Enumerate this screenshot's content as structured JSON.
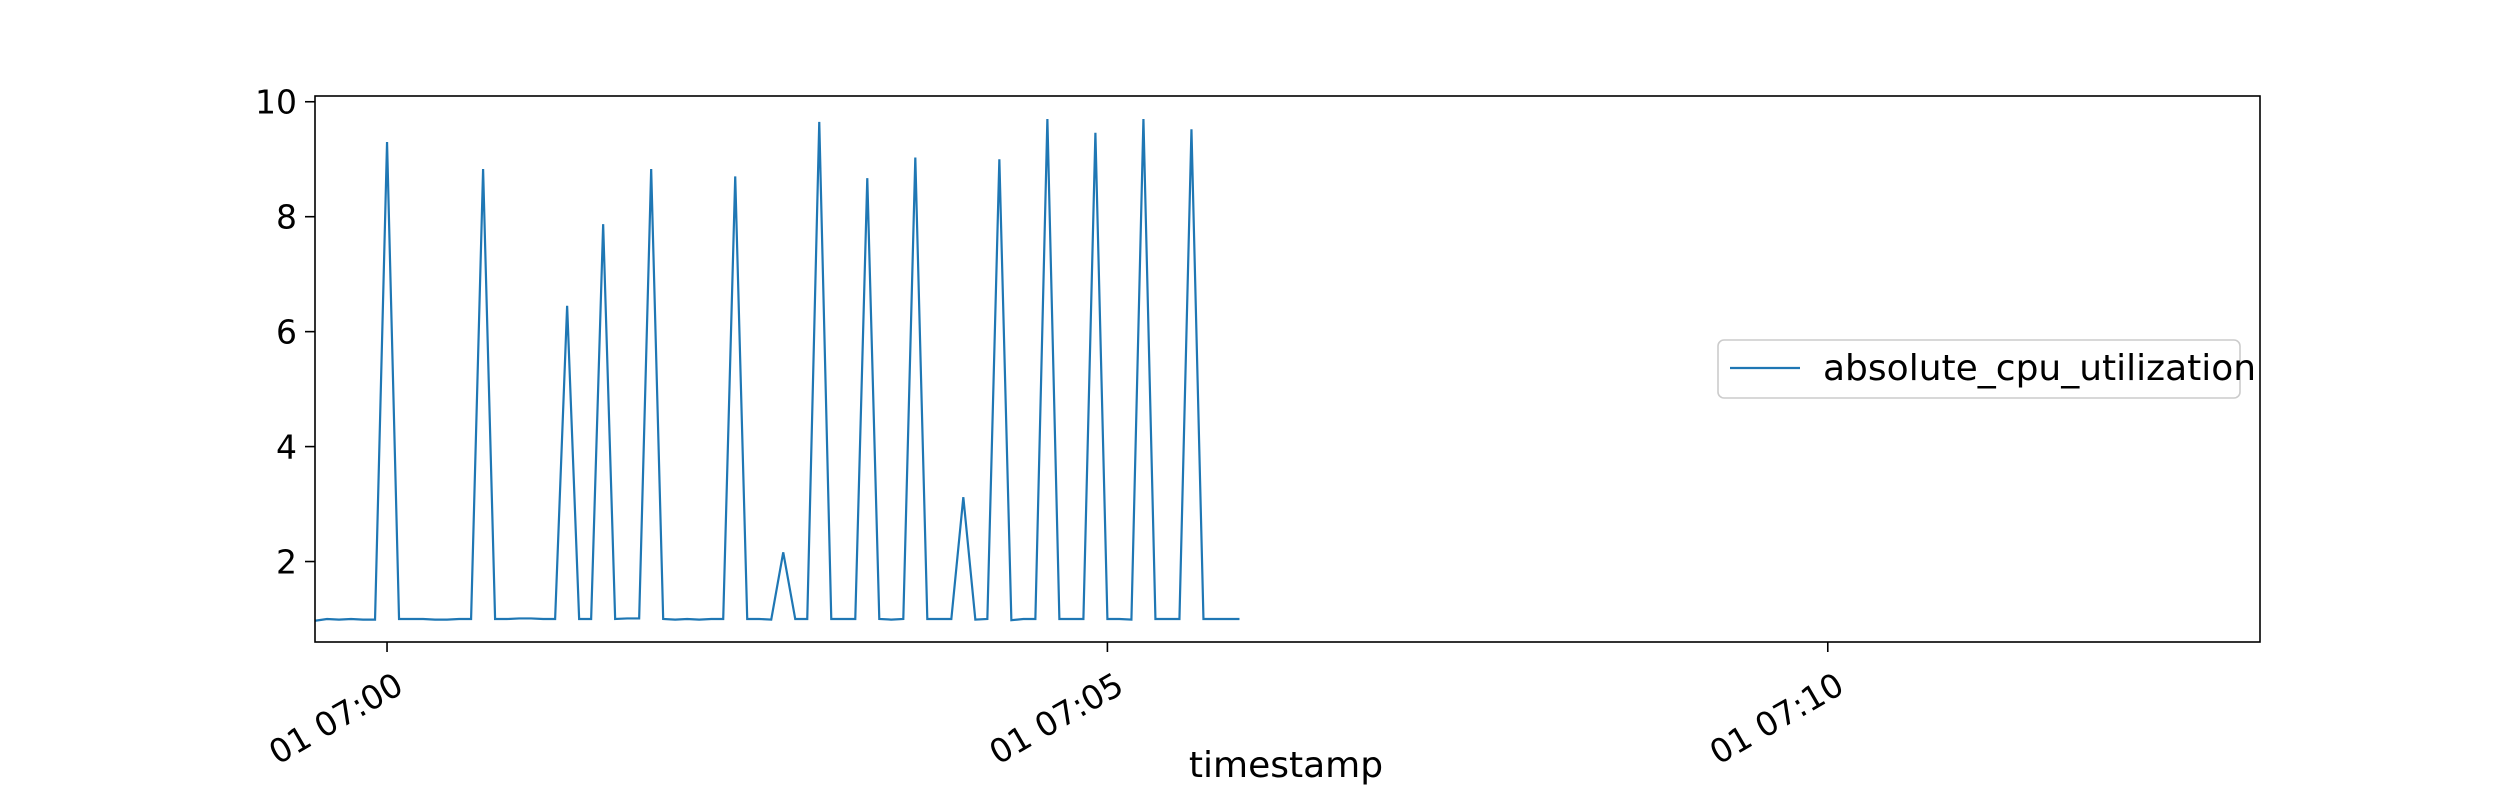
{
  "chart_data": {
    "type": "line",
    "title": "",
    "xlabel": "timestamp",
    "ylabel": "",
    "x_unit": "seconds",
    "x_start": "2000-01-01 06:59:30",
    "x_step_seconds": 5,
    "xlim": [
      "2000-01-01 06:59:30",
      "2000-01-01 07:13:00"
    ],
    "ylim": [
      0.6,
      10.1
    ],
    "x_ticks": [
      {
        "at": "2000-01-01 07:00:00",
        "label": "01 07:00"
      },
      {
        "at": "2000-01-01 07:05:00",
        "label": "01 07:05"
      },
      {
        "at": "2000-01-01 07:10:00",
        "label": "01 07:10"
      }
    ],
    "y_ticks": [
      2,
      4,
      6,
      8,
      10
    ],
    "grid": false,
    "legend_position": "center-right",
    "colors": {
      "series": "#1f77b4"
    },
    "series": [
      {
        "name": "absolute_cpu_utilization",
        "values": [
          0.97,
          1.0,
          0.99,
          1.0,
          0.99,
          0.99,
          9.3,
          1.0,
          1.0,
          1.0,
          0.99,
          0.99,
          1.0,
          1.0,
          8.83,
          1.0,
          1.0,
          1.01,
          1.01,
          1.0,
          1.0,
          6.45,
          1.0,
          1.0,
          7.87,
          1.0,
          1.01,
          1.01,
          8.83,
          1.0,
          0.99,
          1.0,
          0.99,
          1.0,
          1.0,
          8.7,
          1.0,
          1.0,
          0.99,
          2.16,
          1.0,
          1.0,
          9.65,
          1.0,
          1.0,
          1.0,
          8.67,
          1.0,
          0.99,
          1.0,
          9.03,
          1.0,
          1.0,
          1.0,
          3.12,
          0.99,
          1.0,
          9.0,
          0.98,
          1.0,
          1.0,
          9.7,
          1.0,
          1.0,
          1.0,
          9.46,
          1.0,
          1.0,
          0.99,
          9.7,
          1.0,
          1.0,
          1.0,
          9.52,
          1.0,
          1.0,
          1.0,
          1.0
        ]
      }
    ]
  }
}
